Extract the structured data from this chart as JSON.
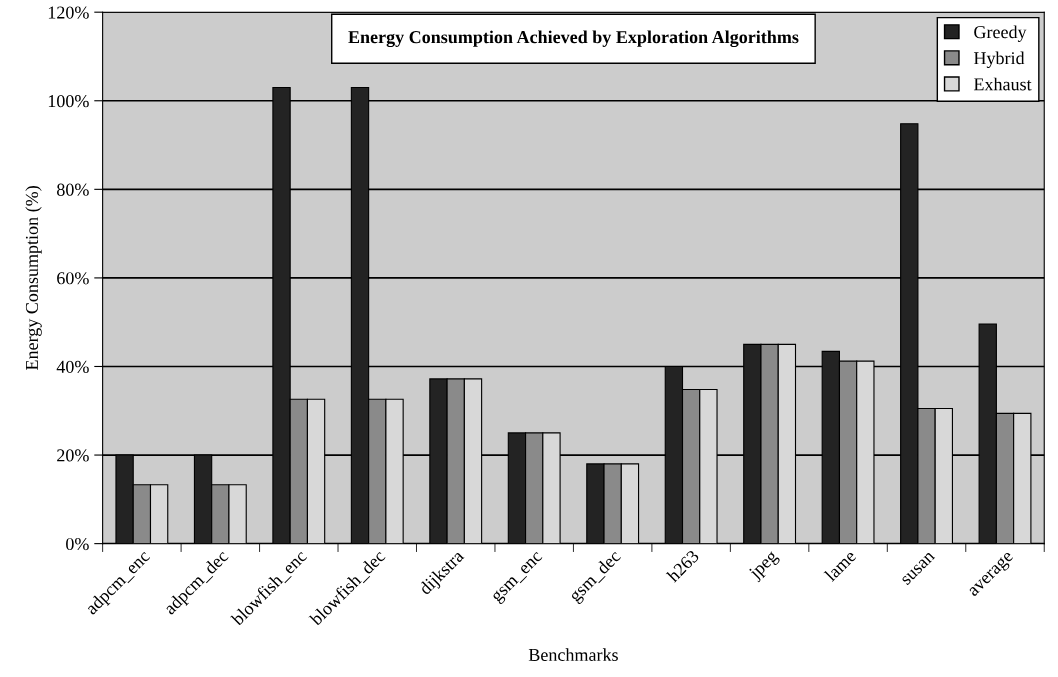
{
  "chart_data": {
    "type": "bar",
    "title": "Energy Consumption Achieved by Exploration Algorithms",
    "xlabel": "Benchmarks",
    "ylabel": "Energy Consumption (%)",
    "categories": [
      "adpcm_enc",
      "adpcm_dec",
      "blowfish_enc",
      "blowfish_dec",
      "dijkstra",
      "gsm_enc",
      "gsm_dec",
      "h263",
      "jpeg",
      "lame",
      "susan",
      "average"
    ],
    "series": [
      {
        "name": "Greedy",
        "color": "#232323",
        "values": [
          20,
          20,
          103,
          103,
          37.2,
          25,
          18,
          40,
          45,
          43.4,
          94.8,
          49.6
        ]
      },
      {
        "name": "Hybrid",
        "color": "#8a8a8a",
        "values": [
          13.3,
          13.3,
          32.6,
          32.6,
          37.2,
          25,
          18,
          34.8,
          45,
          41.2,
          30.5,
          29.4
        ]
      },
      {
        "name": "Exhaust",
        "color": "#d8d8d8",
        "values": [
          13.3,
          13.3,
          32.6,
          32.6,
          37.2,
          25,
          18,
          34.8,
          45,
          41.2,
          30.5,
          29.4
        ]
      }
    ],
    "ylim": [
      0,
      120
    ],
    "yticks": [
      {
        "value": 0,
        "label": "0%"
      },
      {
        "value": 20,
        "label": "20%"
      },
      {
        "value": 40,
        "label": "40%"
      },
      {
        "value": 60,
        "label": "60%"
      },
      {
        "value": 80,
        "label": "80%"
      },
      {
        "value": 100,
        "label": "100%"
      },
      {
        "value": 120,
        "label": "120%"
      }
    ],
    "grid": "y",
    "legend": "top right"
  }
}
